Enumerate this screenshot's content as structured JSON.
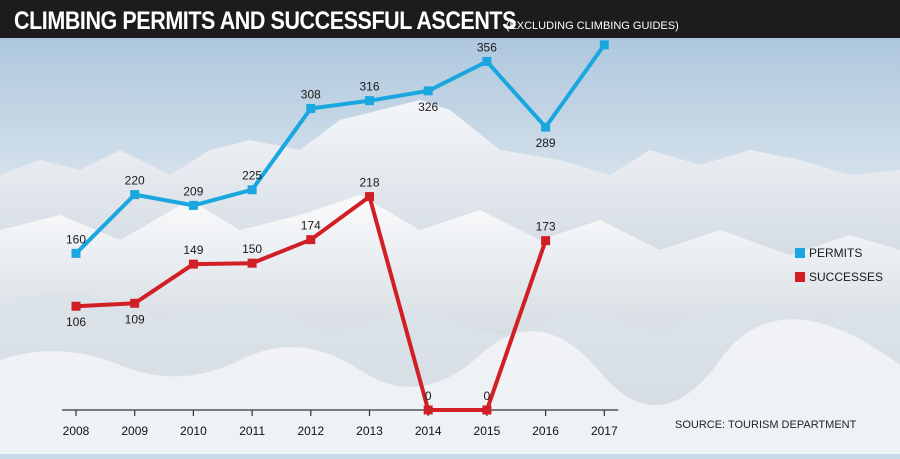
{
  "header": {
    "title": "CLIMBING PERMITS AND SUCCESSFUL ASCENTS",
    "subtitle": "(EXCLUDING CLIMBING GUIDES)"
  },
  "source": "SOURCE: TOURISM DEPARTMENT",
  "colors": {
    "permits": "#1aa7e0",
    "successes": "#d11f26",
    "title_bar": "#1c1c1c"
  },
  "chart_data": {
    "type": "line",
    "title": "CLIMBING PERMITS AND SUCCESSFUL ASCENTS",
    "subtitle": "(EXCLUDING CLIMBING GUIDES)",
    "categories": [
      "2008",
      "2009",
      "2010",
      "2011",
      "2012",
      "2013",
      "2014",
      "2015",
      "2016",
      "2017"
    ],
    "series": [
      {
        "name": "PERMITS",
        "color": "#1aa7e0",
        "values": [
          160,
          220,
          209,
          225,
          308,
          316,
          326,
          356,
          289,
          373
        ]
      },
      {
        "name": "SUCCESSES",
        "color": "#d11f26",
        "values": [
          106,
          109,
          149,
          150,
          174,
          218,
          0,
          0,
          173,
          null
        ]
      }
    ],
    "ylim": [
      0,
      380
    ],
    "grid": false,
    "legend": "right"
  }
}
